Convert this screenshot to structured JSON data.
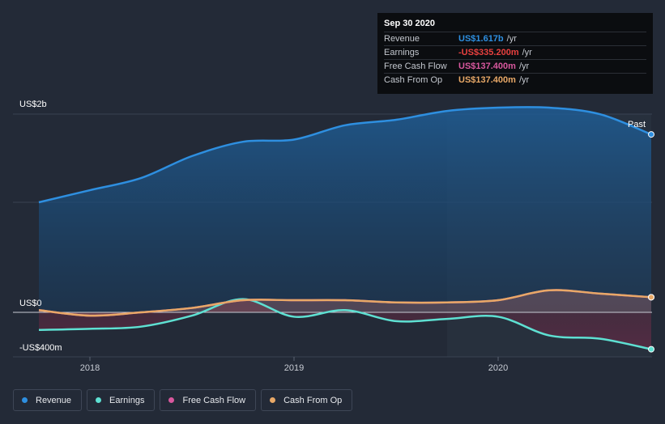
{
  "chart_data": {
    "type": "area",
    "x_ticks": [
      "2018",
      "2019",
      "2020"
    ],
    "y_ticks": [
      "US$2b",
      "US$0",
      "-US$400m"
    ],
    "past_label": "Past",
    "ylim": [
      -400,
      2000
    ],
    "series": [
      {
        "name": "Revenue",
        "color": "#2e8fe0",
        "points": [
          [
            2017.75,
            1000
          ],
          [
            2018.0,
            1110
          ],
          [
            2018.25,
            1220
          ],
          [
            2018.5,
            1420
          ],
          [
            2018.75,
            1550
          ],
          [
            2019.0,
            1570
          ],
          [
            2019.25,
            1700
          ],
          [
            2019.5,
            1750
          ],
          [
            2019.75,
            1830
          ],
          [
            2020.0,
            1860
          ],
          [
            2020.25,
            1860
          ],
          [
            2020.5,
            1800
          ],
          [
            2020.75,
            1617
          ]
        ]
      },
      {
        "name": "Earnings",
        "color": "#5ee0d2",
        "points": [
          [
            2017.75,
            -160
          ],
          [
            2018.0,
            -150
          ],
          [
            2018.25,
            -130
          ],
          [
            2018.5,
            -30
          ],
          [
            2018.75,
            120
          ],
          [
            2019.0,
            -40
          ],
          [
            2019.25,
            20
          ],
          [
            2019.5,
            -80
          ],
          [
            2019.75,
            -60
          ],
          [
            2020.0,
            -40
          ],
          [
            2020.25,
            -210
          ],
          [
            2020.5,
            -240
          ],
          [
            2020.75,
            -335.2
          ]
        ]
      },
      {
        "name": "Free Cash Flow",
        "color": "#d9589e",
        "points": [
          [
            2017.75,
            20
          ],
          [
            2018.0,
            -30
          ],
          [
            2018.25,
            0
          ],
          [
            2018.5,
            40
          ],
          [
            2018.75,
            110
          ],
          [
            2019.0,
            110
          ],
          [
            2019.25,
            110
          ],
          [
            2019.5,
            90
          ],
          [
            2019.75,
            90
          ],
          [
            2020.0,
            110
          ],
          [
            2020.25,
            200
          ],
          [
            2020.5,
            170
          ],
          [
            2020.75,
            137.4
          ]
        ]
      },
      {
        "name": "Cash From Op",
        "color": "#e8a867",
        "points": [
          [
            2017.75,
            20
          ],
          [
            2018.0,
            -30
          ],
          [
            2018.25,
            0
          ],
          [
            2018.5,
            40
          ],
          [
            2018.75,
            110
          ],
          [
            2019.0,
            110
          ],
          [
            2019.25,
            110
          ],
          [
            2019.5,
            90
          ],
          [
            2019.75,
            90
          ],
          [
            2020.0,
            110
          ],
          [
            2020.25,
            200
          ],
          [
            2020.5,
            170
          ],
          [
            2020.75,
            137.4
          ]
        ]
      }
    ]
  },
  "tooltip": {
    "date": "Sep 30 2020",
    "rows": [
      {
        "label": "Revenue",
        "value": "US$1.617b",
        "unit": "/yr",
        "color": "#2e8fe0"
      },
      {
        "label": "Earnings",
        "value": "-US$335.200m",
        "unit": "/yr",
        "color": "#e8403f"
      },
      {
        "label": "Free Cash Flow",
        "value": "US$137.400m",
        "unit": "/yr",
        "color": "#d9589e"
      },
      {
        "label": "Cash From Op",
        "value": "US$137.400m",
        "unit": "/yr",
        "color": "#e8a867"
      }
    ]
  },
  "legend": [
    {
      "label": "Revenue",
      "color": "#2e8fe0"
    },
    {
      "label": "Earnings",
      "color": "#5ee0d2"
    },
    {
      "label": "Free Cash Flow",
      "color": "#d9589e"
    },
    {
      "label": "Cash From Op",
      "color": "#e8a867"
    }
  ]
}
